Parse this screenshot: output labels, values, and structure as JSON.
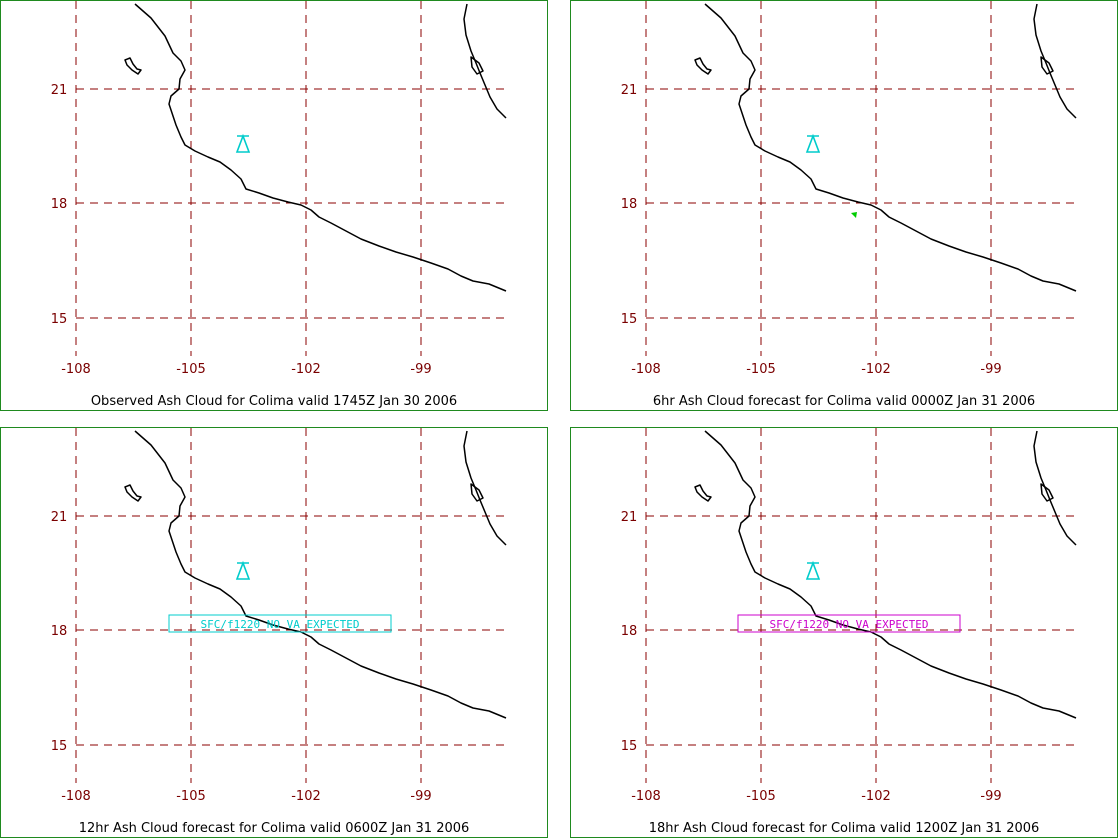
{
  "map": {
    "x_ticks": [
      "-108",
      "-105",
      "-102",
      "-99"
    ],
    "y_ticks": [
      "21",
      "18",
      "15"
    ],
    "lon_values": [
      -108,
      -105,
      -102,
      -99
    ],
    "lat_values": [
      21,
      18,
      15
    ],
    "grid_color": "#8b0000",
    "frame_color": "#1f8a1f"
  },
  "panels": [
    {
      "caption": "Observed Ash Cloud for Colima valid 1745Z Jan 30 2006",
      "volcano_color": "#00cccc",
      "message": "",
      "message_color": ""
    },
    {
      "caption": "6hr Ash Cloud forecast for Colima valid 0000Z Jan 31 2006",
      "volcano_color": "#00cccc",
      "message": "",
      "message_color": "",
      "ash_marker_color": "#00cc00"
    },
    {
      "caption": "12hr Ash Cloud forecast for Colima valid 0600Z Jan 31 2006",
      "volcano_color": "#00cccc",
      "message": "SFC/f1220 NO VA EXPECTED",
      "message_color": "#00cccc"
    },
    {
      "caption": "18hr Ash Cloud forecast for Colima valid 1200Z Jan 31 2006",
      "volcano_color": "#00cccc",
      "message": "SFC/f1220 NO VA EXPECTED",
      "message_color": "#cc00cc"
    }
  ]
}
